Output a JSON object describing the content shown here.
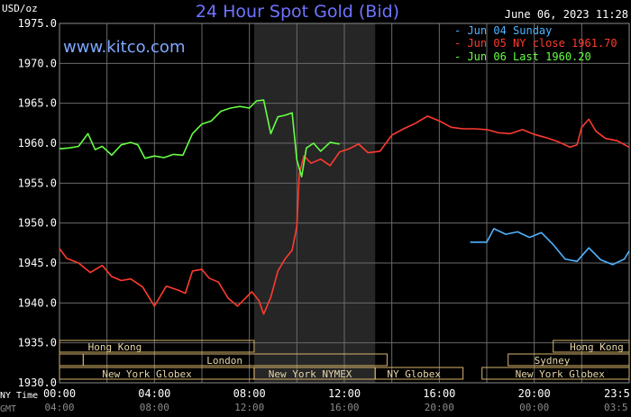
{
  "header": {
    "unit": "USD/oz",
    "title": "24 Hour Spot Gold (Bid)",
    "timestamp": "June 06, 2023 11:28",
    "watermark": "www.kitco.com"
  },
  "legend": [
    {
      "label": "- Jun 04 Sunday",
      "color": "#4fb3ff"
    },
    {
      "label": "- Jun 05 NY close 1961.70",
      "color": "#ff3b2f"
    },
    {
      "label": "- Jun 06 Last 1960.20",
      "color": "#66ff44"
    }
  ],
  "axes": {
    "y_ticks": [
      "1975.0",
      "1970.0",
      "1965.0",
      "1960.0",
      "1955.0",
      "1950.0",
      "1945.0",
      "1940.0",
      "1935.0",
      "1930.0"
    ],
    "x_label_ny": "NY Time",
    "x_label_gmt": "GMT",
    "x_ticks_ny": [
      "00:00",
      "04:00",
      "08:00",
      "12:00",
      "16:00",
      "20:00",
      "23:5"
    ],
    "x_ticks_gmt": [
      "04:00",
      "08:00",
      "12:00",
      "16:00",
      "20:00",
      "00:00",
      "03:5"
    ]
  },
  "sessions": {
    "row1": [
      "Hong Kong",
      "Hong Kong"
    ],
    "row2": [
      "London",
      "Sydney"
    ],
    "row3": [
      "New York Globex",
      "New York NYMEX",
      "NY Globex",
      "New York Globex"
    ]
  },
  "chart_data": {
    "type": "line",
    "title": "24 Hour Spot Gold (Bid)",
    "ylabel": "USD/oz",
    "ylim": [
      1930,
      1975
    ],
    "xlim_hours_ny": [
      0,
      24
    ],
    "shaded_region_ny_hours": [
      8.2,
      13.3
    ],
    "grid": true,
    "legend_position": "top-right",
    "series": [
      {
        "name": "Jun 04 Sunday",
        "color": "#4fb3ff",
        "x": [
          17.3,
          18.0,
          18.3,
          18.8,
          19.3,
          19.8,
          20.3,
          20.8,
          21.3,
          21.8,
          22.3,
          22.8,
          23.3,
          23.8,
          24.0
        ],
        "y": [
          1947.6,
          1947.6,
          1949.3,
          1948.6,
          1948.9,
          1948.2,
          1948.8,
          1947.3,
          1945.5,
          1945.2,
          1946.9,
          1945.4,
          1944.8,
          1945.5,
          1946.5
        ]
      },
      {
        "name": "Jun 05 NY close 1961.70",
        "color": "#ff3b2f",
        "x": [
          0.0,
          0.3,
          0.8,
          1.3,
          1.8,
          2.2,
          2.6,
          3.0,
          3.5,
          4.0,
          4.5,
          5.0,
          5.3,
          5.6,
          6.0,
          6.3,
          6.7,
          7.1,
          7.5,
          7.8,
          8.1,
          8.4,
          8.6,
          8.9,
          9.2,
          9.5,
          9.8,
          10.0,
          10.1,
          10.3,
          10.6,
          11.0,
          11.4,
          11.8,
          12.2,
          12.6,
          13.0,
          13.5,
          14.0,
          14.5,
          15.0,
          15.5,
          16.0,
          16.5,
          17.0,
          17.5,
          18.0,
          18.5,
          19.0,
          19.5,
          20.0,
          20.5,
          21.0,
          21.5,
          21.8,
          22.0,
          22.3,
          22.6,
          23.0,
          23.5,
          24.0
        ],
        "y": [
          1946.8,
          1945.6,
          1945.0,
          1943.8,
          1944.7,
          1943.3,
          1942.8,
          1943.0,
          1942.0,
          1939.6,
          1942.1,
          1941.6,
          1941.2,
          1944.0,
          1944.2,
          1943.1,
          1942.6,
          1940.6,
          1939.6,
          1940.5,
          1941.4,
          1940.3,
          1938.6,
          1940.7,
          1944.0,
          1945.5,
          1946.6,
          1949.6,
          1956.2,
          1958.4,
          1957.5,
          1958.0,
          1957.2,
          1958.9,
          1959.3,
          1959.9,
          1958.8,
          1959.0,
          1961.0,
          1961.8,
          1962.5,
          1963.4,
          1962.8,
          1962.0,
          1961.8,
          1961.8,
          1961.7,
          1961.3,
          1961.2,
          1961.7,
          1961.1,
          1960.7,
          1960.2,
          1959.5,
          1959.8,
          1962.0,
          1963.0,
          1961.5,
          1960.6,
          1960.3,
          1959.5
        ]
      },
      {
        "name": "Jun 06 Last 1960.20",
        "color": "#66ff44",
        "x": [
          0.0,
          0.4,
          0.8,
          1.2,
          1.5,
          1.8,
          2.2,
          2.6,
          3.0,
          3.3,
          3.6,
          4.0,
          4.4,
          4.8,
          5.2,
          5.6,
          6.0,
          6.4,
          6.8,
          7.2,
          7.6,
          8.0,
          8.3,
          8.6,
          8.9,
          9.2,
          9.5,
          9.8,
          10.0,
          10.2,
          10.4,
          10.7,
          11.0,
          11.4,
          11.8
        ],
        "y": [
          1959.3,
          1959.4,
          1959.6,
          1961.2,
          1959.2,
          1959.6,
          1958.5,
          1959.8,
          1960.1,
          1959.8,
          1958.1,
          1958.4,
          1958.2,
          1958.6,
          1958.5,
          1961.2,
          1962.4,
          1962.8,
          1964.0,
          1964.4,
          1964.6,
          1964.4,
          1965.3,
          1965.4,
          1961.2,
          1963.3,
          1963.5,
          1963.8,
          1957.9,
          1955.8,
          1959.4,
          1960.0,
          1959.0,
          1960.1,
          1959.9
        ]
      }
    ]
  }
}
